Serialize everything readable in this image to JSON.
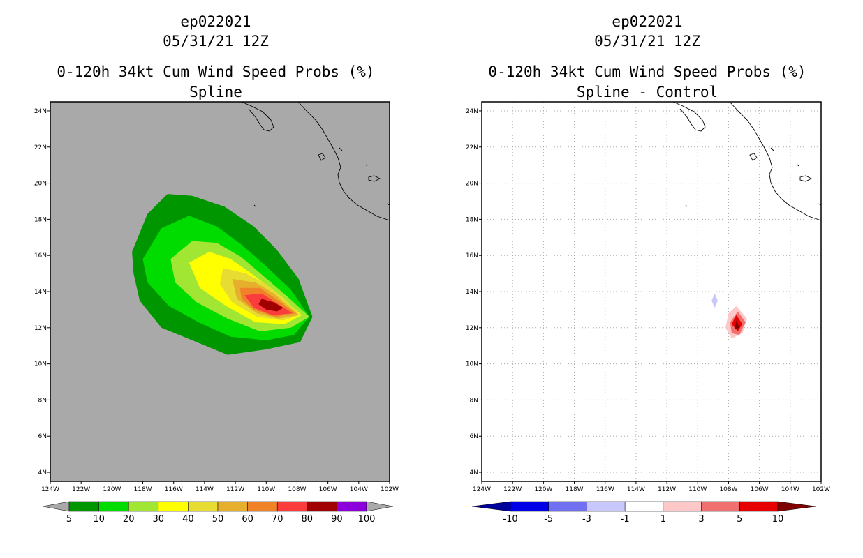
{
  "chart_data": [
    {
      "type": "heatmap",
      "name": "spline",
      "title_lines": [
        "ep022021",
        "05/31/21 12Z",
        "0-120h 34kt Cum Wind Speed Probs (%)",
        "Spline"
      ],
      "xlim": [
        -124,
        -102
      ],
      "ylim": [
        3.5,
        24.5
      ],
      "x_tick_labels": [
        "124W",
        "122W",
        "120W",
        "118W",
        "116W",
        "114W",
        "112W",
        "110W",
        "108W",
        "106W",
        "104W",
        "102W"
      ],
      "y_tick_labels": [
        "4N",
        "6N",
        "8N",
        "10N",
        "12N",
        "14N",
        "16N",
        "18N",
        "20N",
        "22N",
        "24N"
      ],
      "grid": false,
      "background_color": "#a9a9a9",
      "colorbar": {
        "labels": [
          "5",
          "10",
          "20",
          "30",
          "40",
          "50",
          "60",
          "70",
          "80",
          "90",
          "100"
        ],
        "colors": [
          "#009600",
          "#00dc00",
          "#a0e632",
          "#ffff00",
          "#e6dc32",
          "#e6af2d",
          "#f08228",
          "#fa3c3c",
          "#a00000",
          "#8c00dc"
        ],
        "under_color": "#a9a9a9",
        "over_color": "#a9a9a9"
      },
      "contours": [
        {
          "level": 5,
          "color": "#009600",
          "points": [
            [
              -118.7,
              16.2
            ],
            [
              -117.7,
              18.3
            ],
            [
              -116.4,
              19.4
            ],
            [
              -114.8,
              19.3
            ],
            [
              -112.7,
              18.7
            ],
            [
              -110.8,
              17.6
            ],
            [
              -109.3,
              16.3
            ],
            [
              -107.9,
              14.7
            ],
            [
              -107.0,
              12.6
            ],
            [
              -107.8,
              11.2
            ],
            [
              -110.0,
              10.8
            ],
            [
              -112.5,
              10.5
            ],
            [
              -114.5,
              11.2
            ],
            [
              -116.8,
              12.0
            ],
            [
              -118.2,
              13.5
            ],
            [
              -118.6,
              15.0
            ]
          ]
        },
        {
          "level": 10,
          "color": "#00dc00",
          "points": [
            [
              -118.0,
              15.8
            ],
            [
              -116.8,
              17.5
            ],
            [
              -115.0,
              18.2
            ],
            [
              -113.2,
              17.6
            ],
            [
              -111.6,
              16.6
            ],
            [
              -110.0,
              15.4
            ],
            [
              -108.4,
              14.1
            ],
            [
              -107.2,
              12.6
            ],
            [
              -108.2,
              11.6
            ],
            [
              -110.0,
              11.3
            ],
            [
              -112.3,
              11.5
            ],
            [
              -114.4,
              12.3
            ],
            [
              -116.3,
              13.2
            ],
            [
              -117.7,
              14.5
            ]
          ]
        },
        {
          "level": 20,
          "color": "#a0e632",
          "points": [
            [
              -116.2,
              15.8
            ],
            [
              -114.8,
              16.8
            ],
            [
              -113.2,
              16.7
            ],
            [
              -111.6,
              15.9
            ],
            [
              -110.1,
              14.8
            ],
            [
              -108.6,
              13.7
            ],
            [
              -107.2,
              12.6
            ],
            [
              -108.4,
              12.0
            ],
            [
              -110.4,
              11.8
            ],
            [
              -112.5,
              12.5
            ],
            [
              -114.5,
              13.4
            ],
            [
              -115.9,
              14.5
            ]
          ]
        },
        {
          "level": 30,
          "color": "#ffff00",
          "points": [
            [
              -115.0,
              15.6
            ],
            [
              -113.7,
              16.2
            ],
            [
              -112.3,
              15.8
            ],
            [
              -110.8,
              14.9
            ],
            [
              -109.3,
              13.9
            ],
            [
              -107.7,
              12.7
            ],
            [
              -108.8,
              12.2
            ],
            [
              -110.7,
              12.3
            ],
            [
              -112.6,
              13.2
            ],
            [
              -114.3,
              14.2
            ]
          ]
        },
        {
          "level": 40,
          "color": "#e6dc32",
          "points": [
            [
              -112.8,
              15.3
            ],
            [
              -111.3,
              15.0
            ],
            [
              -110.0,
              14.4
            ],
            [
              -108.8,
              13.6
            ],
            [
              -107.8,
              12.7
            ],
            [
              -108.9,
              12.4
            ],
            [
              -110.6,
              12.6
            ],
            [
              -112.2,
              13.4
            ],
            [
              -113.0,
              14.4
            ]
          ]
        },
        {
          "level": 50,
          "color": "#e6af2d",
          "points": [
            [
              -112.2,
              14.7
            ],
            [
              -110.7,
              14.5
            ],
            [
              -109.5,
              13.9
            ],
            [
              -108.3,
              13.0
            ],
            [
              -107.9,
              12.7
            ],
            [
              -109.2,
              12.5
            ],
            [
              -110.6,
              12.8
            ],
            [
              -111.9,
              13.6
            ]
          ]
        },
        {
          "level": 60,
          "color": "#f08228",
          "points": [
            [
              -111.7,
              14.2
            ],
            [
              -110.4,
              14.2
            ],
            [
              -109.2,
              13.5
            ],
            [
              -108.1,
              12.8
            ],
            [
              -109.4,
              12.6
            ],
            [
              -110.8,
              13.0
            ],
            [
              -111.6,
              13.6
            ]
          ]
        },
        {
          "level": 70,
          "color": "#fa3c3c",
          "points": [
            [
              -111.4,
              13.8
            ],
            [
              -110.3,
              13.9
            ],
            [
              -109.2,
              13.3
            ],
            [
              -108.3,
              12.8
            ],
            [
              -109.6,
              12.7
            ],
            [
              -110.8,
              13.1
            ]
          ]
        },
        {
          "level": 80,
          "color": "#a00000",
          "points": [
            [
              -110.3,
              13.6
            ],
            [
              -109.5,
              13.4
            ],
            [
              -108.9,
              13.1
            ],
            [
              -109.3,
              12.9
            ],
            [
              -110.0,
              13.0
            ],
            [
              -110.5,
              13.3
            ]
          ]
        }
      ]
    },
    {
      "type": "heatmap",
      "name": "spline-minus-control",
      "title_lines": [
        "ep022021",
        "05/31/21 12Z",
        "0-120h 34kt Cum Wind Speed Probs (%)",
        "Spline - Control"
      ],
      "xlim": [
        -124,
        -102
      ],
      "ylim": [
        3.5,
        24.5
      ],
      "x_tick_labels": [
        "124W",
        "122W",
        "120W",
        "118W",
        "116W",
        "114W",
        "112W",
        "110W",
        "108W",
        "106W",
        "104W",
        "102W"
      ],
      "y_tick_labels": [
        "4N",
        "6N",
        "8N",
        "10N",
        "12N",
        "14N",
        "16N",
        "18N",
        "20N",
        "22N",
        "24N"
      ],
      "grid": true,
      "background_color": "#ffffff",
      "colorbar": {
        "labels": [
          "-10",
          "-5",
          "-3",
          "-1",
          "1",
          "3",
          "5",
          "10"
        ],
        "colors": [
          "#0000e6",
          "#7070f0",
          "#c8c8ff",
          "#ffffff",
          "#ffc8c8",
          "#f07070",
          "#e60000"
        ],
        "under_color": "#00009b",
        "over_color": "#800000"
      },
      "contours": [
        {
          "level": -1,
          "color": "#c8c8ff",
          "points": [
            [
              -108.9,
              13.9
            ],
            [
              -108.7,
              13.5
            ],
            [
              -108.9,
              13.1
            ],
            [
              -109.1,
              13.5
            ]
          ]
        },
        {
          "level": 1,
          "color": "#ffc8c8",
          "points": [
            [
              -107.5,
              13.2
            ],
            [
              -106.8,
              12.5
            ],
            [
              -107.1,
              11.7
            ],
            [
              -107.8,
              11.4
            ],
            [
              -108.2,
              12.0
            ],
            [
              -108.0,
              12.8
            ]
          ]
        },
        {
          "level": 3,
          "color": "#f07070",
          "points": [
            [
              -107.4,
              12.9
            ],
            [
              -106.9,
              12.3
            ],
            [
              -107.3,
              11.6
            ],
            [
              -107.8,
              11.7
            ],
            [
              -107.9,
              12.3
            ]
          ]
        },
        {
          "level": 5,
          "color": "#e60000",
          "points": [
            [
              -107.5,
              12.7
            ],
            [
              -107.1,
              12.2
            ],
            [
              -107.4,
              11.8
            ],
            [
              -107.8,
              12.2
            ]
          ]
        },
        {
          "level": 10,
          "color": "#800000",
          "points": [
            [
              -107.5,
              12.4
            ],
            [
              -107.3,
              12.0
            ],
            [
              -107.6,
              11.9
            ]
          ]
        }
      ]
    }
  ]
}
